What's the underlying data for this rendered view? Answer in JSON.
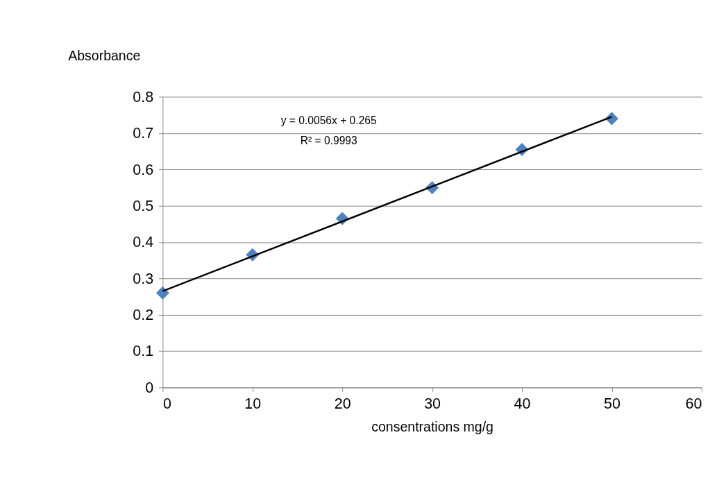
{
  "chart_data": {
    "type": "scatter",
    "xlabel": "consentrations mg/g",
    "ylabel": "Absorbance",
    "x": [
      0,
      10,
      20,
      30,
      40,
      50
    ],
    "series": [
      {
        "color": "#4f81bd",
        "values": [
          0.26,
          0.365,
          0.465,
          0.55,
          0.655,
          0.74
        ],
        "marker": "diamond"
      },
      {
        "type": "line",
        "color": "#000000",
        "x": [
          0,
          50
        ],
        "values": [
          0.265,
          0.745
        ],
        "marker": "none",
        "line_style": "solid"
      }
    ],
    "annotations": [
      "y = 0.0056x  + 0.265",
      "R² = 0.9993"
    ],
    "xlim": [
      0,
      60
    ],
    "xticks": [
      0,
      10,
      20,
      30,
      40,
      50,
      60
    ],
    "ylim": [
      0,
      0.8
    ],
    "yticks": [
      0,
      0.1,
      0.2,
      0.3,
      0.4,
      0.5,
      0.6,
      0.7,
      0.8
    ],
    "grid": "y"
  }
}
